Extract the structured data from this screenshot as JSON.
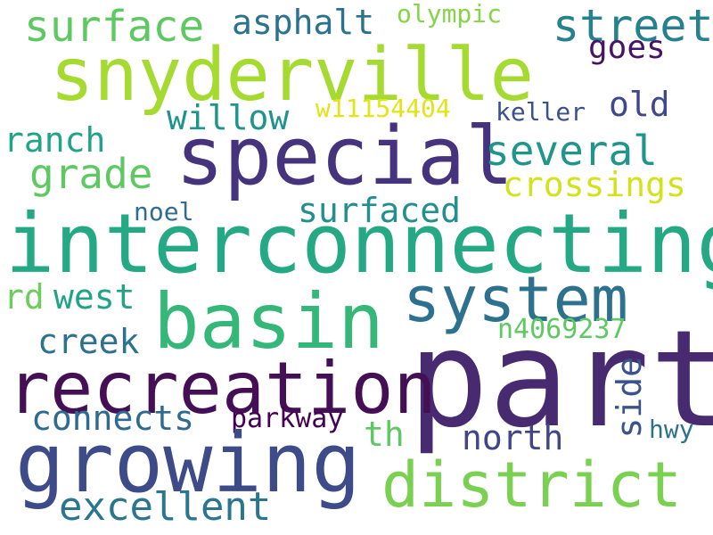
{
  "words": {
    "part": {
      "text": "part",
      "color": "#482a70"
    },
    "interconnecting": {
      "text": "interconnecting",
      "color": "#25a984"
    },
    "snyderville": {
      "text": "snyderville",
      "color": "#a5da30"
    },
    "special": {
      "text": "special",
      "color": "#46337e"
    },
    "basin": {
      "text": "basin",
      "color": "#35b779"
    },
    "recreation": {
      "text": "recreation",
      "color": "#440f54"
    },
    "growing": {
      "text": "growing",
      "color": "#3e4b89"
    },
    "district": {
      "text": "district",
      "color": "#7ad151"
    },
    "system": {
      "text": "system",
      "color": "#2c718e"
    },
    "surface": {
      "text": "surface",
      "color": "#5ec962"
    },
    "asphalt": {
      "text": "asphalt",
      "color": "#2b728e"
    },
    "street": {
      "text": "street",
      "color": "#27808e"
    },
    "olympic": {
      "text": "olympic",
      "color": "#86d449"
    },
    "goes": {
      "text": "goes",
      "color": "#471365"
    },
    "old": {
      "text": "old",
      "color": "#3f4889"
    },
    "willow": {
      "text": "willow",
      "color": "#1f948c"
    },
    "w11154404": {
      "text": "w11154404",
      "color": "#e2e418"
    },
    "keller": {
      "text": "keller",
      "color": "#3b518b"
    },
    "ranch": {
      "text": "ranch",
      "color": "#20a386"
    },
    "several": {
      "text": "several",
      "color": "#1f958b"
    },
    "grade": {
      "text": "grade",
      "color": "#5ec962"
    },
    "crossings": {
      "text": "crossings",
      "color": "#d2e21b"
    },
    "noel": {
      "text": "noel",
      "color": "#2e6d8e"
    },
    "surfaced": {
      "text": "surfaced",
      "color": "#218f8d"
    },
    "rd": {
      "text": "rd",
      "color": "#6ccd5a"
    },
    "west": {
      "text": "west",
      "color": "#20a386"
    },
    "creek": {
      "text": "creek",
      "color": "#2c728e"
    },
    "n4069237": {
      "text": "n4069237",
      "color": "#5ec962"
    },
    "side": {
      "text": "side",
      "color": "#3a538b"
    },
    "connects": {
      "text": "connects",
      "color": "#306a8e"
    },
    "parkway": {
      "text": "parkway",
      "color": "#440154"
    },
    "th": {
      "text": "th",
      "color": "#5ec962"
    },
    "north": {
      "text": "north",
      "color": "#404688"
    },
    "hwy": {
      "text": "hwy",
      "color": "#2c728e"
    },
    "excellent": {
      "text": "excellent",
      "color": "#2a768e"
    }
  }
}
